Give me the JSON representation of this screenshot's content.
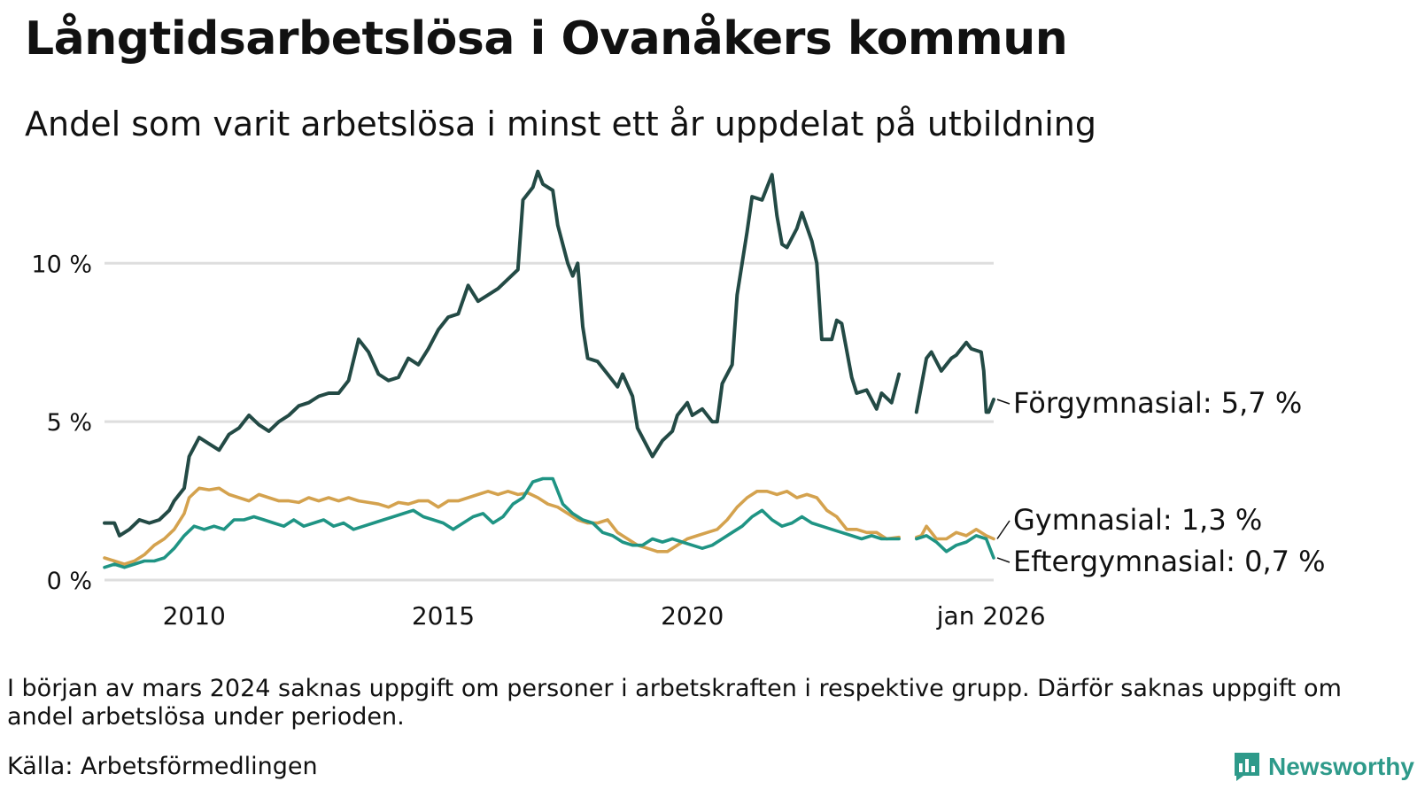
{
  "title": "Långtidsarbetslösa i Ovanåkers kommun",
  "subtitle": "Andel som varit arbetslösa i minst ett år uppdelat på utbildning",
  "footnote": "I början av mars 2024 saknas uppgift om personer i arbetskraften i respektive grupp. Därför saknas uppgift om andel arbetslösa under perioden.",
  "source": "Källa: Arbetsförmedlingen",
  "brand": "Newsworthy",
  "colors": {
    "brand": "#2e9a8a",
    "grid": "#dedede"
  },
  "chart_data": {
    "type": "line",
    "title": "Långtidsarbetslösa i Ovanåkers kommun",
    "subtitle": "Andel som varit arbetslösa i minst ett år uppdelat på utbildning",
    "xlabel": "",
    "ylabel": "",
    "xlim": [
      2008.2,
      2026.05
    ],
    "ylim": [
      0,
      13
    ],
    "y_ticks": [
      {
        "value": 0,
        "label": "0 %"
      },
      {
        "value": 5,
        "label": "5 %"
      },
      {
        "value": 10,
        "label": "10 %"
      }
    ],
    "x_ticks": [
      {
        "value": 2010,
        "label": "2010"
      },
      {
        "value": 2015,
        "label": "2015"
      },
      {
        "value": 2020,
        "label": "2020"
      },
      {
        "value": 2026,
        "label": "jan 2026"
      }
    ],
    "grid": true,
    "gap": [
      2024.15,
      2024.5
    ],
    "series": [
      {
        "name": "Förgymnasial",
        "label": "Förgymnasial: 5,7 %",
        "last_value": 5.7,
        "color": "#234a45",
        "points": [
          [
            2008.2,
            1.8
          ],
          [
            2008.4,
            1.8
          ],
          [
            2008.5,
            1.4
          ],
          [
            2008.7,
            1.6
          ],
          [
            2008.9,
            1.9
          ],
          [
            2009.1,
            1.8
          ],
          [
            2009.3,
            1.9
          ],
          [
            2009.5,
            2.2
          ],
          [
            2009.6,
            2.5
          ],
          [
            2009.8,
            2.9
          ],
          [
            2009.9,
            3.9
          ],
          [
            2010.1,
            4.5
          ],
          [
            2010.3,
            4.3
          ],
          [
            2010.5,
            4.1
          ],
          [
            2010.7,
            4.6
          ],
          [
            2010.9,
            4.8
          ],
          [
            2011.1,
            5.2
          ],
          [
            2011.3,
            4.9
          ],
          [
            2011.5,
            4.7
          ],
          [
            2011.7,
            5.0
          ],
          [
            2011.9,
            5.2
          ],
          [
            2012.1,
            5.5
          ],
          [
            2012.3,
            5.6
          ],
          [
            2012.5,
            5.8
          ],
          [
            2012.7,
            5.9
          ],
          [
            2012.9,
            5.9
          ],
          [
            2013.1,
            6.3
          ],
          [
            2013.3,
            7.6
          ],
          [
            2013.5,
            7.2
          ],
          [
            2013.7,
            6.5
          ],
          [
            2013.9,
            6.3
          ],
          [
            2014.1,
            6.4
          ],
          [
            2014.3,
            7.0
          ],
          [
            2014.5,
            6.8
          ],
          [
            2014.7,
            7.3
          ],
          [
            2014.9,
            7.9
          ],
          [
            2015.1,
            8.3
          ],
          [
            2015.3,
            8.4
          ],
          [
            2015.5,
            9.3
          ],
          [
            2015.7,
            8.8
          ],
          [
            2015.9,
            9.0
          ],
          [
            2016.1,
            9.2
          ],
          [
            2016.3,
            9.5
          ],
          [
            2016.5,
            9.8
          ],
          [
            2016.6,
            12.0
          ],
          [
            2016.8,
            12.4
          ],
          [
            2016.9,
            12.9
          ],
          [
            2017.0,
            12.5
          ],
          [
            2017.2,
            12.3
          ],
          [
            2017.3,
            11.2
          ],
          [
            2017.5,
            10.0
          ],
          [
            2017.6,
            9.6
          ],
          [
            2017.7,
            10.0
          ],
          [
            2017.8,
            8.0
          ],
          [
            2017.9,
            7.0
          ],
          [
            2018.1,
            6.9
          ],
          [
            2018.3,
            6.5
          ],
          [
            2018.5,
            6.1
          ],
          [
            2018.6,
            6.5
          ],
          [
            2018.8,
            5.8
          ],
          [
            2018.9,
            4.8
          ],
          [
            2019.1,
            4.2
          ],
          [
            2019.2,
            3.9
          ],
          [
            2019.4,
            4.4
          ],
          [
            2019.6,
            4.7
          ],
          [
            2019.7,
            5.2
          ],
          [
            2019.9,
            5.6
          ],
          [
            2020.0,
            5.2
          ],
          [
            2020.2,
            5.4
          ],
          [
            2020.4,
            5.0
          ],
          [
            2020.5,
            5.0
          ],
          [
            2020.6,
            6.2
          ],
          [
            2020.8,
            6.8
          ],
          [
            2020.9,
            9.0
          ],
          [
            2021.1,
            11.0
          ],
          [
            2021.2,
            12.1
          ],
          [
            2021.4,
            12.0
          ],
          [
            2021.5,
            12.4
          ],
          [
            2021.6,
            12.8
          ],
          [
            2021.7,
            11.5
          ],
          [
            2021.8,
            10.6
          ],
          [
            2021.9,
            10.5
          ],
          [
            2022.1,
            11.1
          ],
          [
            2022.2,
            11.6
          ],
          [
            2022.4,
            10.7
          ],
          [
            2022.5,
            10.0
          ],
          [
            2022.6,
            7.6
          ],
          [
            2022.8,
            7.6
          ],
          [
            2022.9,
            8.2
          ],
          [
            2023.0,
            8.1
          ],
          [
            2023.2,
            6.4
          ],
          [
            2023.3,
            5.9
          ],
          [
            2023.5,
            6.0
          ],
          [
            2023.7,
            5.4
          ],
          [
            2023.8,
            5.9
          ],
          [
            2024.0,
            5.6
          ],
          [
            2024.15,
            6.5
          ],
          [
            2024.5,
            5.3
          ],
          [
            2024.7,
            7.0
          ],
          [
            2024.8,
            7.2
          ],
          [
            2025.0,
            6.6
          ],
          [
            2025.2,
            7.0
          ],
          [
            2025.3,
            7.1
          ],
          [
            2025.5,
            7.5
          ],
          [
            2025.6,
            7.3
          ],
          [
            2025.8,
            7.2
          ],
          [
            2025.85,
            6.6
          ],
          [
            2025.9,
            5.3
          ],
          [
            2025.95,
            5.3
          ],
          [
            2026.05,
            5.7
          ]
        ]
      },
      {
        "name": "Gymnasial",
        "label": "Gymnasial: 1,3 %",
        "last_value": 1.3,
        "color": "#d4a24e",
        "points": [
          [
            2008.2,
            0.7
          ],
          [
            2008.4,
            0.6
          ],
          [
            2008.6,
            0.5
          ],
          [
            2008.8,
            0.6
          ],
          [
            2009.0,
            0.8
          ],
          [
            2009.2,
            1.1
          ],
          [
            2009.4,
            1.3
          ],
          [
            2009.6,
            1.6
          ],
          [
            2009.8,
            2.1
          ],
          [
            2009.9,
            2.6
          ],
          [
            2010.1,
            2.9
          ],
          [
            2010.3,
            2.85
          ],
          [
            2010.5,
            2.9
          ],
          [
            2010.7,
            2.7
          ],
          [
            2010.9,
            2.6
          ],
          [
            2011.1,
            2.5
          ],
          [
            2011.3,
            2.7
          ],
          [
            2011.5,
            2.6
          ],
          [
            2011.7,
            2.5
          ],
          [
            2011.9,
            2.5
          ],
          [
            2012.1,
            2.45
          ],
          [
            2012.3,
            2.6
          ],
          [
            2012.5,
            2.5
          ],
          [
            2012.7,
            2.6
          ],
          [
            2012.9,
            2.5
          ],
          [
            2013.1,
            2.6
          ],
          [
            2013.3,
            2.5
          ],
          [
            2013.5,
            2.45
          ],
          [
            2013.7,
            2.4
          ],
          [
            2013.9,
            2.3
          ],
          [
            2014.1,
            2.45
          ],
          [
            2014.3,
            2.4
          ],
          [
            2014.5,
            2.5
          ],
          [
            2014.7,
            2.5
          ],
          [
            2014.9,
            2.3
          ],
          [
            2015.1,
            2.5
          ],
          [
            2015.3,
            2.5
          ],
          [
            2015.5,
            2.6
          ],
          [
            2015.7,
            2.7
          ],
          [
            2015.9,
            2.8
          ],
          [
            2016.1,
            2.7
          ],
          [
            2016.3,
            2.8
          ],
          [
            2016.5,
            2.7
          ],
          [
            2016.7,
            2.75
          ],
          [
            2016.9,
            2.6
          ],
          [
            2017.1,
            2.4
          ],
          [
            2017.3,
            2.3
          ],
          [
            2017.5,
            2.1
          ],
          [
            2017.7,
            1.9
          ],
          [
            2017.9,
            1.8
          ],
          [
            2018.1,
            1.8
          ],
          [
            2018.3,
            1.9
          ],
          [
            2018.5,
            1.5
          ],
          [
            2018.7,
            1.3
          ],
          [
            2018.9,
            1.1
          ],
          [
            2019.1,
            1.0
          ],
          [
            2019.3,
            0.9
          ],
          [
            2019.5,
            0.9
          ],
          [
            2019.7,
            1.1
          ],
          [
            2019.9,
            1.3
          ],
          [
            2020.1,
            1.4
          ],
          [
            2020.3,
            1.5
          ],
          [
            2020.5,
            1.6
          ],
          [
            2020.7,
            1.9
          ],
          [
            2020.9,
            2.3
          ],
          [
            2021.1,
            2.6
          ],
          [
            2021.3,
            2.8
          ],
          [
            2021.5,
            2.8
          ],
          [
            2021.7,
            2.7
          ],
          [
            2021.9,
            2.8
          ],
          [
            2022.1,
            2.6
          ],
          [
            2022.3,
            2.7
          ],
          [
            2022.5,
            2.6
          ],
          [
            2022.7,
            2.2
          ],
          [
            2022.9,
            2.0
          ],
          [
            2023.1,
            1.6
          ],
          [
            2023.3,
            1.6
          ],
          [
            2023.5,
            1.5
          ],
          [
            2023.7,
            1.5
          ],
          [
            2023.9,
            1.3
          ],
          [
            2024.15,
            1.35
          ],
          [
            2024.5,
            1.35
          ],
          [
            2024.6,
            1.4
          ],
          [
            2024.7,
            1.7
          ],
          [
            2024.8,
            1.5
          ],
          [
            2024.9,
            1.3
          ],
          [
            2025.1,
            1.3
          ],
          [
            2025.3,
            1.5
          ],
          [
            2025.5,
            1.4
          ],
          [
            2025.7,
            1.6
          ],
          [
            2025.9,
            1.4
          ],
          [
            2026.05,
            1.3
          ]
        ]
      },
      {
        "name": "Eftergymnasial",
        "label": "Eftergymnasial: 0,7 %",
        "last_value": 0.7,
        "color": "#1f9484",
        "points": [
          [
            2008.2,
            0.4
          ],
          [
            2008.4,
            0.5
          ],
          [
            2008.6,
            0.4
          ],
          [
            2008.8,
            0.5
          ],
          [
            2009.0,
            0.6
          ],
          [
            2009.2,
            0.6
          ],
          [
            2009.4,
            0.7
          ],
          [
            2009.6,
            1.0
          ],
          [
            2009.8,
            1.4
          ],
          [
            2010.0,
            1.7
          ],
          [
            2010.2,
            1.6
          ],
          [
            2010.4,
            1.7
          ],
          [
            2010.6,
            1.6
          ],
          [
            2010.8,
            1.9
          ],
          [
            2011.0,
            1.9
          ],
          [
            2011.2,
            2.0
          ],
          [
            2011.4,
            1.9
          ],
          [
            2011.6,
            1.8
          ],
          [
            2011.8,
            1.7
          ],
          [
            2012.0,
            1.9
          ],
          [
            2012.2,
            1.7
          ],
          [
            2012.4,
            1.8
          ],
          [
            2012.6,
            1.9
          ],
          [
            2012.8,
            1.7
          ],
          [
            2013.0,
            1.8
          ],
          [
            2013.2,
            1.6
          ],
          [
            2013.4,
            1.7
          ],
          [
            2013.6,
            1.8
          ],
          [
            2013.8,
            1.9
          ],
          [
            2014.0,
            2.0
          ],
          [
            2014.2,
            2.1
          ],
          [
            2014.4,
            2.2
          ],
          [
            2014.6,
            2.0
          ],
          [
            2014.8,
            1.9
          ],
          [
            2015.0,
            1.8
          ],
          [
            2015.2,
            1.6
          ],
          [
            2015.4,
            1.8
          ],
          [
            2015.6,
            2.0
          ],
          [
            2015.8,
            2.1
          ],
          [
            2016.0,
            1.8
          ],
          [
            2016.2,
            2.0
          ],
          [
            2016.4,
            2.4
          ],
          [
            2016.6,
            2.6
          ],
          [
            2016.8,
            3.1
          ],
          [
            2017.0,
            3.2
          ],
          [
            2017.2,
            3.2
          ],
          [
            2017.4,
            2.4
          ],
          [
            2017.6,
            2.1
          ],
          [
            2017.8,
            1.9
          ],
          [
            2018.0,
            1.8
          ],
          [
            2018.2,
            1.5
          ],
          [
            2018.4,
            1.4
          ],
          [
            2018.6,
            1.2
          ],
          [
            2018.8,
            1.1
          ],
          [
            2019.0,
            1.1
          ],
          [
            2019.2,
            1.3
          ],
          [
            2019.4,
            1.2
          ],
          [
            2019.6,
            1.3
          ],
          [
            2019.8,
            1.2
          ],
          [
            2020.0,
            1.1
          ],
          [
            2020.2,
            1.0
          ],
          [
            2020.4,
            1.1
          ],
          [
            2020.6,
            1.3
          ],
          [
            2020.8,
            1.5
          ],
          [
            2021.0,
            1.7
          ],
          [
            2021.2,
            2.0
          ],
          [
            2021.4,
            2.2
          ],
          [
            2021.6,
            1.9
          ],
          [
            2021.8,
            1.7
          ],
          [
            2022.0,
            1.8
          ],
          [
            2022.2,
            2.0
          ],
          [
            2022.4,
            1.8
          ],
          [
            2022.6,
            1.7
          ],
          [
            2022.8,
            1.6
          ],
          [
            2023.0,
            1.5
          ],
          [
            2023.2,
            1.4
          ],
          [
            2023.4,
            1.3
          ],
          [
            2023.6,
            1.4
          ],
          [
            2023.8,
            1.3
          ],
          [
            2024.15,
            1.3
          ],
          [
            2024.5,
            1.3
          ],
          [
            2024.7,
            1.4
          ],
          [
            2024.9,
            1.2
          ],
          [
            2025.1,
            0.9
          ],
          [
            2025.3,
            1.1
          ],
          [
            2025.5,
            1.2
          ],
          [
            2025.7,
            1.4
          ],
          [
            2025.9,
            1.3
          ],
          [
            2026.05,
            0.7
          ]
        ]
      }
    ]
  }
}
